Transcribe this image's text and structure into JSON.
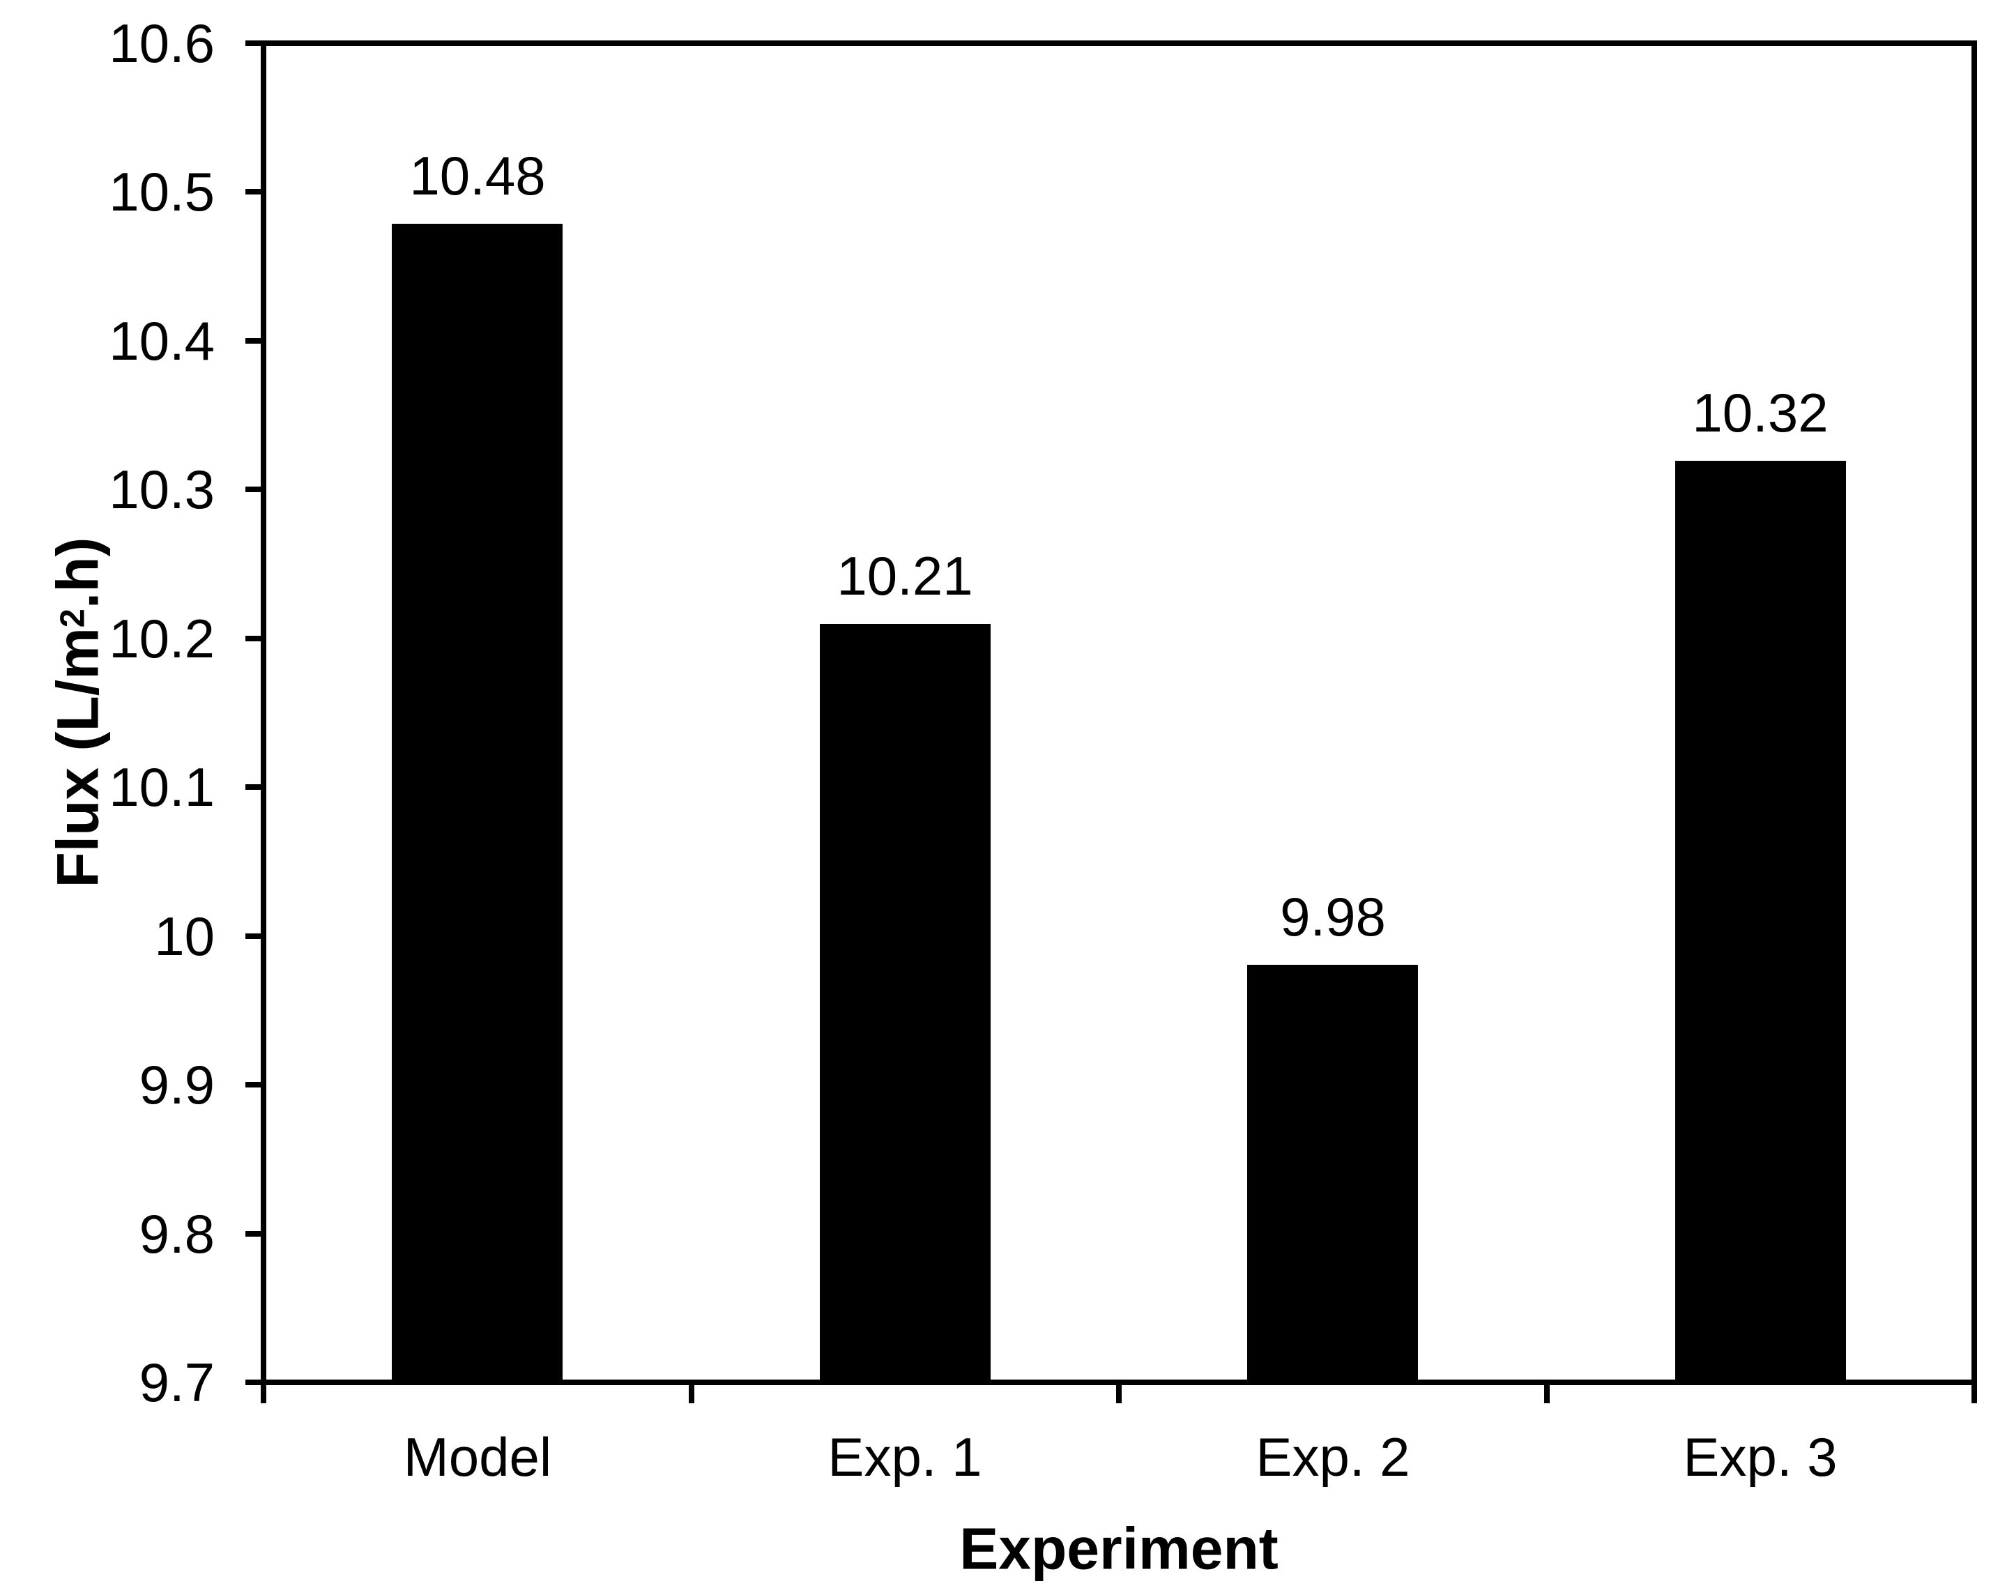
{
  "chart_data": {
    "type": "bar",
    "title": "",
    "categories": [
      "Model",
      "Exp. 1",
      "Exp. 2",
      "Exp. 3"
    ],
    "values": [
      10.48,
      10.21,
      9.98,
      10.32
    ],
    "value_labels": [
      "10.48",
      "10.21",
      "9.98",
      "10.32"
    ],
    "xlabel": "Experiment",
    "ylabel": "Flux (L/m².h)",
    "ylabel_parts": {
      "prefix": "Flux (L/m",
      "sup": "2",
      "suffix": ".h)"
    },
    "ylim": [
      9.7,
      10.6
    ],
    "ytick_step": 0.1,
    "ytick_labels": [
      "10.6",
      "10.5",
      "10.4",
      "10.3",
      "10.2",
      "10.1",
      "10",
      "9.9",
      "9.8",
      "9.7"
    ],
    "bar_color": "#000000",
    "axis_color": "#000000",
    "text_color": "#000000",
    "background_color": "#ffffff",
    "grid": false,
    "legend": "none",
    "bar_gap_ratio": 0.4
  }
}
